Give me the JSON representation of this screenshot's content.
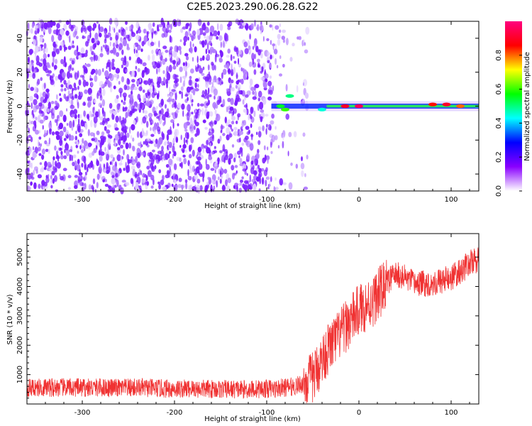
{
  "title": "C2E5.2023.290.06.28.G22",
  "chart_data": [
    {
      "type": "heatmap",
      "xlabel": "Height of straight line (km)",
      "ylabel": "Frequency (Hz)",
      "xlim": [
        -360,
        130
      ],
      "ylim": [
        -50,
        50
      ],
      "xticks": [
        -300,
        -200,
        -100,
        0,
        100
      ],
      "yticks": [
        -40,
        -20,
        0,
        20,
        40
      ],
      "colorbar": {
        "label": "Normalized spectral amplitude",
        "range": [
          0,
          1
        ],
        "ticks": [
          0.0,
          0.2,
          0.4,
          0.6,
          0.8
        ],
        "colormap": [
          "#ffffff",
          "#8a00ff",
          "#0000ff",
          "#00ffff",
          "#00ff00",
          "#ffff00",
          "#ff0000",
          "#ff007f"
        ]
      },
      "signal_band": {
        "start_km": -95,
        "frequency_hz": 0,
        "peak_amplitude_points": [
          {
            "x": -85,
            "y": 0,
            "a": 0.55
          },
          {
            "x": -80,
            "y": -2,
            "a": 0.6
          },
          {
            "x": -75,
            "y": 6,
            "a": 0.5
          },
          {
            "x": -40,
            "y": -2,
            "a": 0.45
          },
          {
            "x": -15,
            "y": 0,
            "a": 0.9
          },
          {
            "x": 0,
            "y": 0,
            "a": 0.95
          },
          {
            "x": 80,
            "y": 1,
            "a": 0.85
          },
          {
            "x": 95,
            "y": 1,
            "a": 0.9
          },
          {
            "x": 110,
            "y": 0,
            "a": 0.8
          }
        ]
      },
      "noise_region_km": [
        -360,
        -55
      ]
    },
    {
      "type": "line",
      "xlabel": "Height of straight line (km)",
      "ylabel": "SNR (10 * v/v)",
      "xlim": [
        -360,
        130
      ],
      "ylim": [
        0,
        5800
      ],
      "xticks": [
        -300,
        -200,
        -100,
        0,
        100
      ],
      "yticks": [
        1000,
        2000,
        3000,
        4000,
        5000
      ],
      "color": "#f03232",
      "series": [
        {
          "x": [
            -360,
            -340,
            -320,
            -300,
            -280,
            -260,
            -240,
            -220,
            -200,
            -180,
            -160,
            -140,
            -120,
            -100,
            -90,
            -80,
            -70,
            -60,
            -50,
            -45,
            -40,
            -35,
            -30,
            -25,
            -20,
            -15,
            -10,
            -5,
            0,
            5,
            10,
            15,
            20,
            25,
            30,
            35,
            40,
            50,
            60,
            70,
            80,
            90,
            100,
            110,
            120,
            130
          ],
          "values": [
            550,
            560,
            560,
            550,
            560,
            540,
            560,
            530,
            520,
            520,
            510,
            500,
            500,
            520,
            520,
            560,
            600,
            700,
            900,
            1200,
            1500,
            1800,
            2000,
            2200,
            2400,
            2600,
            2800,
            3000,
            3200,
            3300,
            3400,
            3500,
            3700,
            3900,
            4100,
            4300,
            4400,
            4300,
            4100,
            4100,
            4100,
            4200,
            4300,
            4500,
            4800,
            4900
          ]
        }
      ]
    }
  ]
}
